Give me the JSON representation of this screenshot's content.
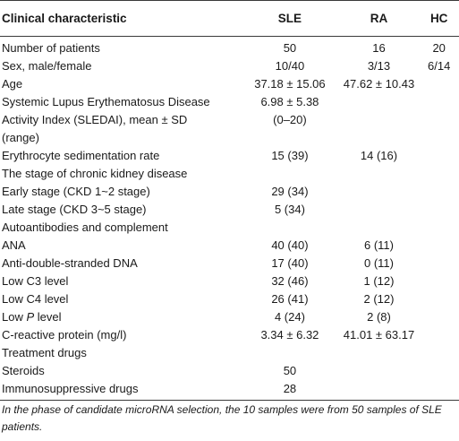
{
  "table": {
    "headers": [
      "Clinical characteristic",
      "SLE",
      "RA",
      "HC"
    ],
    "rows": [
      {
        "label": "Number of patients",
        "sle": "50",
        "ra": "16",
        "hc": "20"
      },
      {
        "label": "Sex, male/female",
        "sle": "10/40",
        "ra": "3/13",
        "hc": "6/14"
      },
      {
        "label": "Age",
        "sle": "37.18 ± 15.06",
        "ra": "47.62 ± 10.43",
        "hc": ""
      },
      {
        "label": "Systemic Lupus Erythematosus Disease",
        "sle": "6.98 ± 5.38",
        "ra": "",
        "hc": ""
      },
      {
        "label": "Activity Index (SLEDAI), mean ± SD",
        "sle": "(0–20)",
        "ra": "",
        "hc": ""
      },
      {
        "label": "(range)",
        "sle": "",
        "ra": "",
        "hc": ""
      },
      {
        "label": "Erythrocyte sedimentation rate",
        "sle": "15 (39)",
        "ra": "14 (16)",
        "hc": ""
      },
      {
        "label": "The stage of chronic kidney disease",
        "sle": "",
        "ra": "",
        "hc": ""
      },
      {
        "label": "Early stage (CKD 1~2 stage)",
        "sle": "29 (34)",
        "ra": "",
        "hc": ""
      },
      {
        "label": "Late stage (CKD 3~5 stage)",
        "sle": "5 (34)",
        "ra": "",
        "hc": ""
      },
      {
        "label": "Autoantibodies and complement",
        "sle": "",
        "ra": "",
        "hc": ""
      },
      {
        "label": "ANA",
        "sle": "40 (40)",
        "ra": "6 (11)",
        "hc": ""
      },
      {
        "label": "Anti-double-stranded DNA",
        "sle": "17 (40)",
        "ra": "0 (11)",
        "hc": ""
      },
      {
        "label": "Low C3 level",
        "sle": "32 (46)",
        "ra": "1 (12)",
        "hc": ""
      },
      {
        "label": "Low C4 level",
        "sle": "26 (41)",
        "ra": "2 (12)",
        "hc": ""
      },
      {
        "label": "Low P level",
        "sle": "4 (24)",
        "ra": "2 (8)",
        "hc": ""
      },
      {
        "label": "C-reactive protein (mg/l)",
        "sle": "3.34 ± 6.32",
        "ra": "41.01 ± 63.17",
        "hc": ""
      },
      {
        "label": "Treatment drugs",
        "sle": "",
        "ra": "",
        "hc": ""
      },
      {
        "label": "Steroids",
        "sle": "50",
        "ra": "",
        "hc": ""
      },
      {
        "label": "Immunosuppressive drugs",
        "sle": "28",
        "ra": "",
        "hc": ""
      }
    ]
  },
  "footnote": "In the phase of candidate microRNA selection, the 10 samples were from 50 samples of SLE patients."
}
